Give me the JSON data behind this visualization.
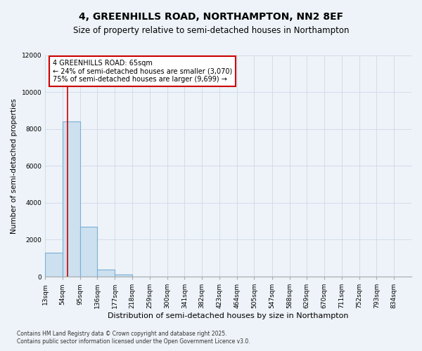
{
  "title": "4, GREENHILLS ROAD, NORTHAMPTON, NN2 8EF",
  "subtitle": "Size of property relative to semi-detached houses in Northampton",
  "xlabel": "Distribution of semi-detached houses by size in Northampton",
  "ylabel": "Number of semi-detached properties",
  "bar_values": [
    1300,
    8400,
    2700,
    380,
    130,
    0,
    0,
    0,
    0,
    0,
    0,
    0,
    0,
    0,
    0,
    0,
    0,
    0,
    0,
    0
  ],
  "bin_edges": [
    13,
    54,
    95,
    136,
    177,
    218,
    259,
    300,
    341,
    382,
    423,
    464,
    505,
    547,
    588,
    629,
    670,
    711,
    752,
    793,
    834
  ],
  "x_tick_labels": [
    "13sqm",
    "54sqm",
    "95sqm",
    "136sqm",
    "177sqm",
    "218sqm",
    "259sqm",
    "300sqm",
    "341sqm",
    "382sqm",
    "423sqm",
    "464sqm",
    "505sqm",
    "547sqm",
    "588sqm",
    "629sqm",
    "670sqm",
    "711sqm",
    "752sqm",
    "793sqm",
    "834sqm"
  ],
  "bar_color": "#cce0f0",
  "bar_edge_color": "#7bafd4",
  "bar_edge_width": 0.8,
  "ylim": [
    0,
    12000
  ],
  "yticks": [
    0,
    2000,
    4000,
    6000,
    8000,
    10000,
    12000
  ],
  "red_line_x": 65,
  "red_line_color": "#cc0000",
  "annotation_text": "4 GREENHILLS ROAD: 65sqm\n← 24% of semi-detached houses are smaller (3,070)\n75% of semi-detached houses are larger (9,699) →",
  "annotation_box_color": "#ffffff",
  "annotation_box_edge": "#cc0000",
  "footer_line1": "Contains HM Land Registry data © Crown copyright and database right 2025.",
  "footer_line2": "Contains public sector information licensed under the Open Government Licence v3.0.",
  "background_color": "#edf3f8",
  "grid_color": "#d0d8e8",
  "title_fontsize": 10,
  "subtitle_fontsize": 8.5,
  "annotation_fontsize": 7,
  "tick_fontsize": 6.5,
  "ylabel_fontsize": 7.5,
  "xlabel_fontsize": 8,
  "footer_fontsize": 5.5
}
